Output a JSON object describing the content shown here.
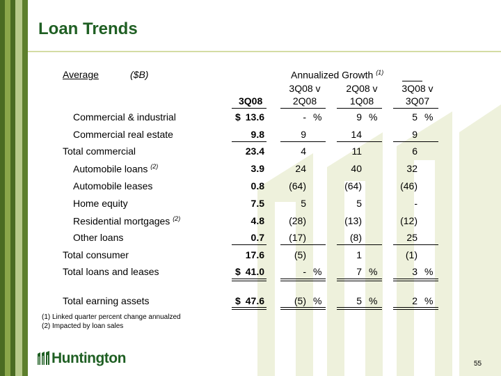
{
  "title": "Loan Trends",
  "header": {
    "average": "Average",
    "unit": "($B)",
    "annualized": "Annualized Growth",
    "annualized_note": "(1)",
    "col_3q08": "3Q08",
    "col_a_top": "3Q08 v",
    "col_a_bot": "2Q08",
    "col_b_top": "2Q08 v",
    "col_b_bot": "1Q08",
    "col_c_top": "3Q08 v",
    "col_c_bot": "3Q07"
  },
  "rows": [
    {
      "label": "Commercial & industrial",
      "note": "",
      "dollar": "$",
      "v": "13.6",
      "a": "-",
      "a_pct": "%",
      "b": "9",
      "b_pct": "%",
      "c": "5",
      "c_pct": "%"
    },
    {
      "label": "Commercial real estate",
      "note": "",
      "dollar": "",
      "v": "9.8",
      "a": "9",
      "a_pct": "",
      "b": "14",
      "b_pct": "",
      "c": "9",
      "c_pct": ""
    },
    {
      "label": "Total commercial",
      "note": "",
      "dollar": "",
      "v": "23.4",
      "a": "4",
      "a_pct": "",
      "b": "11",
      "b_pct": "",
      "c": "6",
      "c_pct": ""
    },
    {
      "label": "Automobile loans",
      "note": "(2)",
      "dollar": "",
      "v": "3.9",
      "a": "24",
      "a_pct": "",
      "b": "40",
      "b_pct": "",
      "c": "32",
      "c_pct": ""
    },
    {
      "label": "Automobile leases",
      "note": "",
      "dollar": "",
      "v": "0.8",
      "a": "(64)",
      "a_pct": "",
      "b": "(64)",
      "b_pct": "",
      "c": "(46)",
      "c_pct": ""
    },
    {
      "label": "Home equity",
      "note": "",
      "dollar": "",
      "v": "7.5",
      "a": "5",
      "a_pct": "",
      "b": "5",
      "b_pct": "",
      "c": "-",
      "c_pct": ""
    },
    {
      "label": "Residential mortgages",
      "note": "(2)",
      "dollar": "",
      "v": "4.8",
      "a": "(28)",
      "a_pct": "",
      "b": "(13)",
      "b_pct": "",
      "c": "(12)",
      "c_pct": ""
    },
    {
      "label": "Other loans",
      "note": "",
      "dollar": "",
      "v": "0.7",
      "a": "(17)",
      "a_pct": "",
      "b": "(8)",
      "b_pct": "",
      "c": "25",
      "c_pct": ""
    },
    {
      "label": "Total consumer",
      "note": "",
      "dollar": "",
      "v": "17.6",
      "a": "(5)",
      "a_pct": "",
      "b": "1",
      "b_pct": "",
      "c": "(1)",
      "c_pct": ""
    },
    {
      "label": "Total loans and leases",
      "note": "",
      "dollar": "$",
      "v": "41.0",
      "a": "-",
      "a_pct": "%",
      "b": "7",
      "b_pct": "%",
      "c": "3",
      "c_pct": "%"
    },
    {
      "label": "Total earning assets",
      "note": "",
      "dollar": "$",
      "v": "47.6",
      "a": "(5)",
      "a_pct": "%",
      "b": "5",
      "b_pct": "%",
      "c": "2",
      "c_pct": "%"
    }
  ],
  "footnotes": [
    "(1)  Linked quarter percent change annualzed",
    "(2)  Impacted by loan sales"
  ],
  "logo_text": "Huntington",
  "page_number": "55"
}
